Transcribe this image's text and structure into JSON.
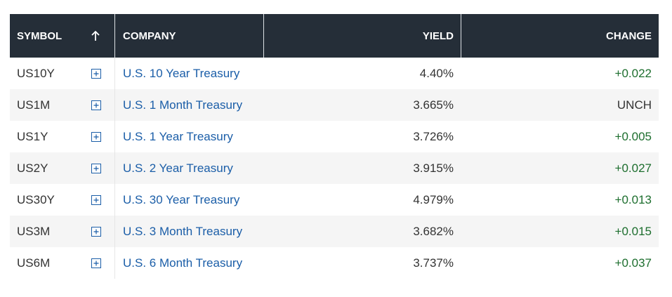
{
  "table": {
    "headers": [
      "SYMBOL",
      "COMPANY",
      "YIELD",
      "CHANGE"
    ],
    "rows": [
      [
        "US10Y",
        "U.S. 10 Year Treasury",
        "4.40%",
        "+0.022"
      ],
      [
        "US1M",
        "U.S. 1 Month Treasury",
        "3.665%",
        "UNCH"
      ],
      [
        "US1Y",
        "U.S. 1 Year Treasury",
        "3.726%",
        "+0.005"
      ],
      [
        "US2Y",
        "U.S. 2 Year Treasury",
        "3.915%",
        "+0.027"
      ],
      [
        "US30Y",
        "U.S. 30 Year Treasury",
        "4.979%",
        "+0.013"
      ],
      [
        "US3M",
        "U.S. 3 Month Treasury",
        "3.682%",
        "+0.015"
      ],
      [
        "US6M",
        "U.S. 6 Month Treasury",
        "3.737%",
        "+0.037"
      ]
    ]
  }
}
